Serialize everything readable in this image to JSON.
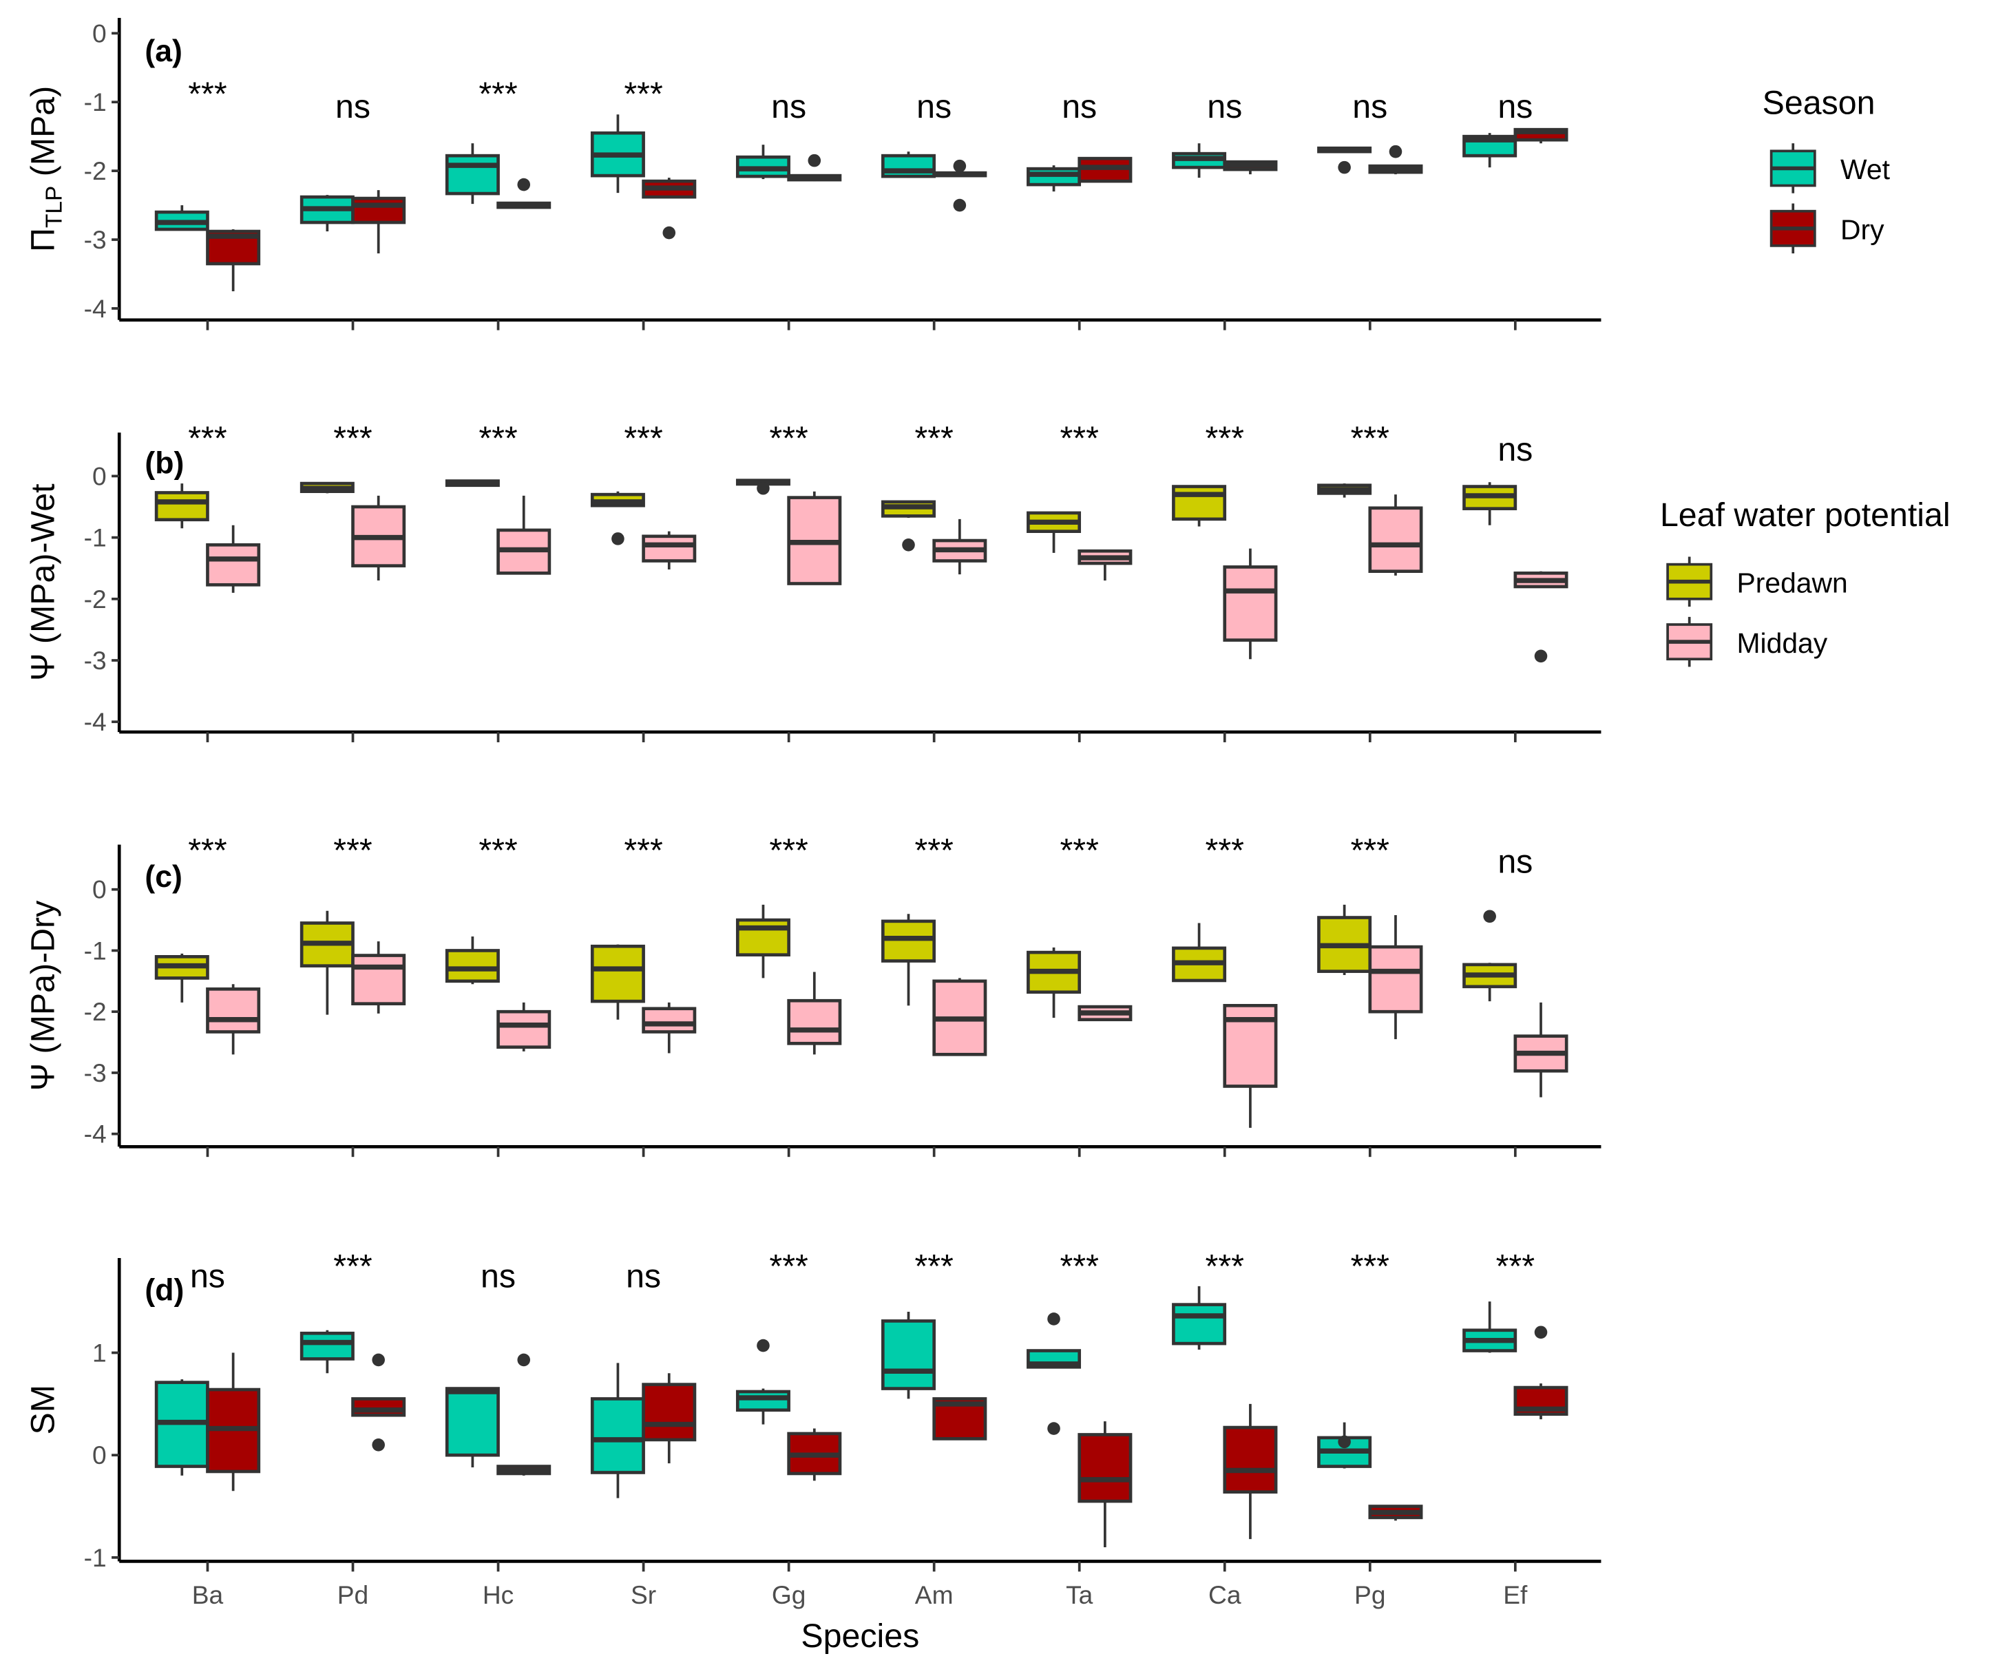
{
  "chart_data": [
    {
      "type": "box",
      "panel_label": "(a)",
      "ylabel": "Π_TLP (MPa)",
      "ylabel_main": "Π",
      "ylabel_sub": "TLP",
      "ylabel_rest": " (MPa)",
      "ylim": [
        -4,
        0
      ],
      "yticks": [
        0,
        -1,
        -2,
        -3,
        -4
      ],
      "legend": "Season",
      "series_names": [
        "Wet",
        "Dry"
      ],
      "annotations": [
        "***",
        "ns",
        "***",
        "***",
        "ns",
        "ns",
        "ns",
        "ns",
        "ns",
        "ns"
      ],
      "boxes": [
        [
          [
            -2.5,
            -2.6,
            -2.75,
            -2.85,
            -2.85,
            []
          ],
          [
            -2.85,
            -2.88,
            -2.95,
            -3.35,
            -3.75,
            []
          ]
        ],
        [
          [
            -2.35,
            -2.38,
            -2.55,
            -2.75,
            -2.88,
            []
          ],
          [
            -2.28,
            -2.4,
            -2.5,
            -2.75,
            -3.2,
            []
          ]
        ],
        [
          [
            -1.6,
            -1.78,
            -1.92,
            -2.33,
            -2.48,
            []
          ],
          [
            -2.45,
            -2.47,
            -2.5,
            -2.53,
            -2.55,
            [
              -2.2
            ]
          ]
        ],
        [
          [
            -1.18,
            -1.45,
            -1.77,
            -2.07,
            -2.32,
            []
          ],
          [
            -2.1,
            -2.15,
            -2.25,
            -2.38,
            -2.38,
            [
              -2.9
            ]
          ]
        ],
        [
          [
            -1.62,
            -1.8,
            -1.97,
            -2.08,
            -2.12,
            []
          ],
          [
            -2.05,
            -2.07,
            -2.1,
            -2.13,
            -2.15,
            [
              -1.85
            ]
          ]
        ],
        [
          [
            -1.72,
            -1.78,
            -2.0,
            -2.08,
            -2.1,
            []
          ],
          [
            -2.02,
            -2.03,
            -2.05,
            -2.07,
            -2.08,
            [
              -1.93,
              -2.5
            ]
          ]
        ],
        [
          [
            -1.92,
            -1.97,
            -2.05,
            -2.2,
            -2.3,
            []
          ],
          [
            -1.8,
            -1.82,
            -1.95,
            -2.15,
            -2.15,
            []
          ]
        ],
        [
          [
            -1.6,
            -1.75,
            -1.82,
            -1.95,
            -2.1,
            []
          ],
          [
            -1.85,
            -1.87,
            -1.92,
            -1.98,
            -2.05,
            []
          ]
        ],
        [
          [
            -1.65,
            -1.67,
            -1.7,
            -1.72,
            -1.72,
            [
              -1.95
            ]
          ],
          [
            -1.92,
            -1.93,
            -1.97,
            -2.02,
            -2.05,
            [
              -1.72
            ]
          ]
        ],
        [
          [
            -1.45,
            -1.5,
            -1.55,
            -1.78,
            -1.95,
            []
          ],
          [
            -1.38,
            -1.4,
            -1.43,
            -1.55,
            -1.6,
            []
          ]
        ]
      ]
    },
    {
      "type": "box",
      "panel_label": "(b)",
      "ylabel": "Ψ (MPa)-Wet",
      "ylim": [
        -4,
        0
      ],
      "yticks": [
        0,
        -1,
        -2,
        -3,
        -4
      ],
      "legend": "Leaf water potential",
      "series_names": [
        "Predawn",
        "Midday"
      ],
      "annotations": [
        "***",
        "***",
        "***",
        "***",
        "***",
        "***",
        "***",
        "***",
        "***",
        "ns"
      ],
      "boxes": [
        [
          [
            -0.12,
            -0.27,
            -0.42,
            -0.71,
            -0.85,
            []
          ],
          [
            -0.8,
            -1.12,
            -1.35,
            -1.77,
            -1.9,
            []
          ]
        ],
        [
          [
            -0.1,
            -0.12,
            -0.2,
            -0.25,
            -0.28,
            []
          ],
          [
            -0.32,
            -0.5,
            -1.0,
            -1.46,
            -1.7,
            []
          ]
        ],
        [
          [
            -0.08,
            -0.08,
            -0.12,
            -0.15,
            -0.15,
            []
          ],
          [
            -0.32,
            -0.88,
            -1.2,
            -1.58,
            -1.58,
            []
          ]
        ],
        [
          [
            -0.25,
            -0.3,
            -0.42,
            -0.48,
            -0.5,
            [
              -1.02
            ]
          ],
          [
            -0.9,
            -0.98,
            -1.12,
            -1.38,
            -1.52,
            []
          ]
        ],
        [
          [
            -0.07,
            -0.07,
            -0.1,
            -0.13,
            -0.13,
            [
              -0.2
            ]
          ],
          [
            -0.25,
            -0.35,
            -1.08,
            -1.75,
            -1.75,
            []
          ]
        ],
        [
          [
            -0.4,
            -0.42,
            -0.5,
            -0.65,
            -0.68,
            [
              -1.12
            ]
          ],
          [
            -0.7,
            -1.05,
            -1.2,
            -1.38,
            -1.6,
            []
          ]
        ],
        [
          [
            -0.58,
            -0.6,
            -0.75,
            -0.9,
            -1.25,
            []
          ],
          [
            -1.22,
            -1.22,
            -1.33,
            -1.42,
            -1.7,
            []
          ]
        ],
        [
          [
            -0.15,
            -0.17,
            -0.3,
            -0.7,
            -0.82,
            []
          ],
          [
            -1.18,
            -1.48,
            -1.87,
            -2.67,
            -2.98,
            []
          ]
        ],
        [
          [
            -0.12,
            -0.15,
            -0.22,
            -0.28,
            -0.35,
            []
          ],
          [
            -0.3,
            -0.52,
            -1.12,
            -1.55,
            -1.62,
            []
          ]
        ],
        [
          [
            -0.1,
            -0.17,
            -0.32,
            -0.53,
            -0.8,
            []
          ],
          [
            -1.55,
            -1.58,
            -1.7,
            -1.8,
            -1.8,
            [
              -2.93
            ]
          ]
        ]
      ]
    },
    {
      "type": "box",
      "panel_label": "(c)",
      "ylabel": "Ψ (MPa)-Dry",
      "ylim": [
        -4,
        0
      ],
      "yticks": [
        0,
        -1,
        -2,
        -3,
        -4
      ],
      "series_names": [
        "Predawn",
        "Midday"
      ],
      "annotations": [
        "***",
        "***",
        "***",
        "***",
        "***",
        "***",
        "***",
        "***",
        "***",
        "ns"
      ],
      "boxes": [
        [
          [
            -1.05,
            -1.1,
            -1.25,
            -1.45,
            -1.85,
            []
          ],
          [
            -1.55,
            -1.63,
            -2.13,
            -2.33,
            -2.7,
            []
          ]
        ],
        [
          [
            -0.35,
            -0.55,
            -0.88,
            -1.25,
            -2.05,
            []
          ],
          [
            -0.85,
            -1.08,
            -1.27,
            -1.87,
            -2.03,
            []
          ]
        ],
        [
          [
            -0.77,
            -1.0,
            -1.3,
            -1.5,
            -1.55,
            []
          ],
          [
            -1.85,
            -2.0,
            -2.22,
            -2.58,
            -2.65,
            []
          ]
        ],
        [
          [
            -0.9,
            -0.93,
            -1.3,
            -1.83,
            -2.13,
            []
          ],
          [
            -1.85,
            -1.95,
            -2.2,
            -2.33,
            -2.68,
            []
          ]
        ],
        [
          [
            -0.25,
            -0.5,
            -0.63,
            -1.07,
            -1.45,
            []
          ],
          [
            -1.35,
            -1.82,
            -2.3,
            -2.52,
            -2.7,
            []
          ]
        ],
        [
          [
            -0.4,
            -0.52,
            -0.8,
            -1.17,
            -1.9,
            []
          ],
          [
            -1.45,
            -1.5,
            -2.12,
            -2.7,
            -2.7,
            []
          ]
        ],
        [
          [
            -0.95,
            -1.03,
            -1.34,
            -1.68,
            -2.1,
            []
          ],
          [
            -1.9,
            -1.92,
            -2.02,
            -2.13,
            -2.15,
            []
          ]
        ],
        [
          [
            -0.55,
            -0.96,
            -1.2,
            -1.49,
            -1.5,
            []
          ],
          [
            -1.9,
            -1.9,
            -2.13,
            -3.22,
            -3.9,
            []
          ]
        ],
        [
          [
            -0.25,
            -0.46,
            -0.92,
            -1.34,
            -1.4,
            []
          ],
          [
            -0.42,
            -0.94,
            -1.34,
            -2.0,
            -2.45,
            []
          ]
        ],
        [
          [
            -1.2,
            -1.23,
            -1.4,
            -1.59,
            -1.83,
            [
              -0.44
            ]
          ],
          [
            -1.85,
            -2.4,
            -2.68,
            -2.97,
            -3.4,
            []
          ]
        ]
      ]
    },
    {
      "type": "box",
      "panel_label": "(d)",
      "ylabel": "SM",
      "ylim": [
        -1,
        1.8
      ],
      "yticks": [
        1,
        0,
        -1
      ],
      "series_names": [
        "Wet",
        "Dry"
      ],
      "annotations": [
        "ns",
        "***",
        "ns",
        "ns",
        "***",
        "***",
        "***",
        "***",
        "***",
        "***"
      ],
      "boxes": [
        [
          [
            0.74,
            0.71,
            0.32,
            -0.11,
            -0.2,
            []
          ],
          [
            1.0,
            0.64,
            0.26,
            -0.16,
            -0.35,
            []
          ]
        ],
        [
          [
            1.22,
            1.19,
            1.1,
            0.94,
            0.8,
            []
          ],
          [
            0.55,
            0.55,
            0.44,
            0.39,
            0.39,
            [
              0.93,
              0.1
            ]
          ]
        ],
        [
          [
            0.66,
            0.65,
            0.62,
            0.0,
            -0.12,
            []
          ],
          [
            -0.1,
            -0.11,
            -0.15,
            -0.18,
            -0.2,
            [
              0.93
            ]
          ]
        ],
        [
          [
            0.9,
            0.55,
            0.15,
            -0.17,
            -0.42,
            []
          ],
          [
            0.8,
            0.69,
            0.3,
            0.15,
            -0.08,
            []
          ]
        ],
        [
          [
            0.65,
            0.62,
            0.56,
            0.44,
            0.3,
            [
              1.07
            ]
          ],
          [
            0.26,
            0.21,
            0.0,
            -0.18,
            -0.25,
            []
          ]
        ],
        [
          [
            1.4,
            1.31,
            0.82,
            0.65,
            0.55,
            []
          ],
          [
            0.55,
            0.55,
            0.5,
            0.16,
            0.15,
            []
          ]
        ],
        [
          [
            1.03,
            1.02,
            0.89,
            0.86,
            0.86,
            [
              1.33,
              0.26
            ]
          ],
          [
            0.33,
            0.2,
            -0.24,
            -0.45,
            -0.9,
            []
          ]
        ],
        [
          [
            1.65,
            1.47,
            1.36,
            1.09,
            1.03,
            []
          ],
          [
            0.5,
            0.27,
            -0.15,
            -0.36,
            -0.82,
            []
          ]
        ],
        [
          [
            0.32,
            0.17,
            0.04,
            -0.11,
            -0.13,
            [
              0.13
            ]
          ],
          [
            -0.5,
            -0.5,
            -0.56,
            -0.61,
            -0.64,
            []
          ]
        ],
        [
          [
            1.5,
            1.22,
            1.12,
            1.02,
            1.0,
            []
          ],
          [
            0.7,
            0.66,
            0.45,
            0.4,
            0.35,
            [
              1.2
            ]
          ]
        ]
      ]
    }
  ],
  "categories": [
    "Ba",
    "Pd",
    "Hc",
    "Sr",
    "Gg",
    "Am",
    "Ta",
    "Ca",
    "Pg",
    "Ef"
  ],
  "xlabel": "Species",
  "colors": {
    "Wet": "#00CDAA",
    "Dry": "#A50000",
    "Predawn": "#CDCD00",
    "Midday": "#FFB6C1",
    "outline": "#333333"
  }
}
